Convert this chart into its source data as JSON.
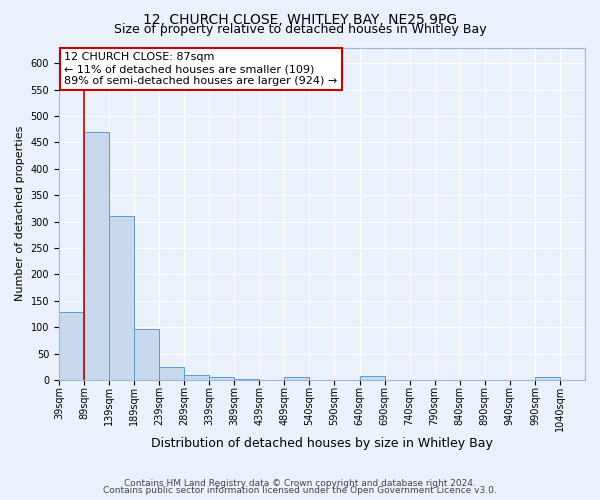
{
  "title": "12, CHURCH CLOSE, WHITLEY BAY, NE25 9PG",
  "subtitle": "Size of property relative to detached houses in Whitley Bay",
  "xlabel": "Distribution of detached houses by size in Whitley Bay",
  "ylabel": "Number of detached properties",
  "categories": [
    "39sqm",
    "89sqm",
    "139sqm",
    "189sqm",
    "239sqm",
    "289sqm",
    "339sqm",
    "389sqm",
    "439sqm",
    "489sqm",
    "540sqm",
    "590sqm",
    "640sqm",
    "690sqm",
    "740sqm",
    "790sqm",
    "840sqm",
    "890sqm",
    "940sqm",
    "990sqm",
    "1040sqm"
  ],
  "values": [
    128,
    470,
    310,
    97,
    25,
    10,
    5,
    2,
    0,
    6,
    0,
    0,
    7,
    0,
    0,
    0,
    0,
    0,
    0,
    5,
    0
  ],
  "bar_color": "#c8d9ed",
  "bar_edge_color": "#5b9bd5",
  "vline_x_index": 1,
  "vline_color": "#cc0000",
  "ylim": [
    0,
    630
  ],
  "yticks": [
    0,
    50,
    100,
    150,
    200,
    250,
    300,
    350,
    400,
    450,
    500,
    550,
    600
  ],
  "annotation_text": "12 CHURCH CLOSE: 87sqm\n← 11% of detached houses are smaller (109)\n89% of semi-detached houses are larger (924) →",
  "annotation_box_color": "#ffffff",
  "annotation_box_edge": "#cc0000",
  "footer_line1": "Contains HM Land Registry data © Crown copyright and database right 2024.",
  "footer_line2": "Contains public sector information licensed under the Open Government Licence v3.0.",
  "bg_color": "#eaf1fa",
  "plot_bg_color": "#eaf1fa",
  "grid_color": "#ffffff",
  "title_fontsize": 10,
  "subtitle_fontsize": 9,
  "xlabel_fontsize": 9,
  "ylabel_fontsize": 8,
  "tick_fontsize": 7,
  "footer_fontsize": 6.5,
  "annotation_fontsize": 8
}
